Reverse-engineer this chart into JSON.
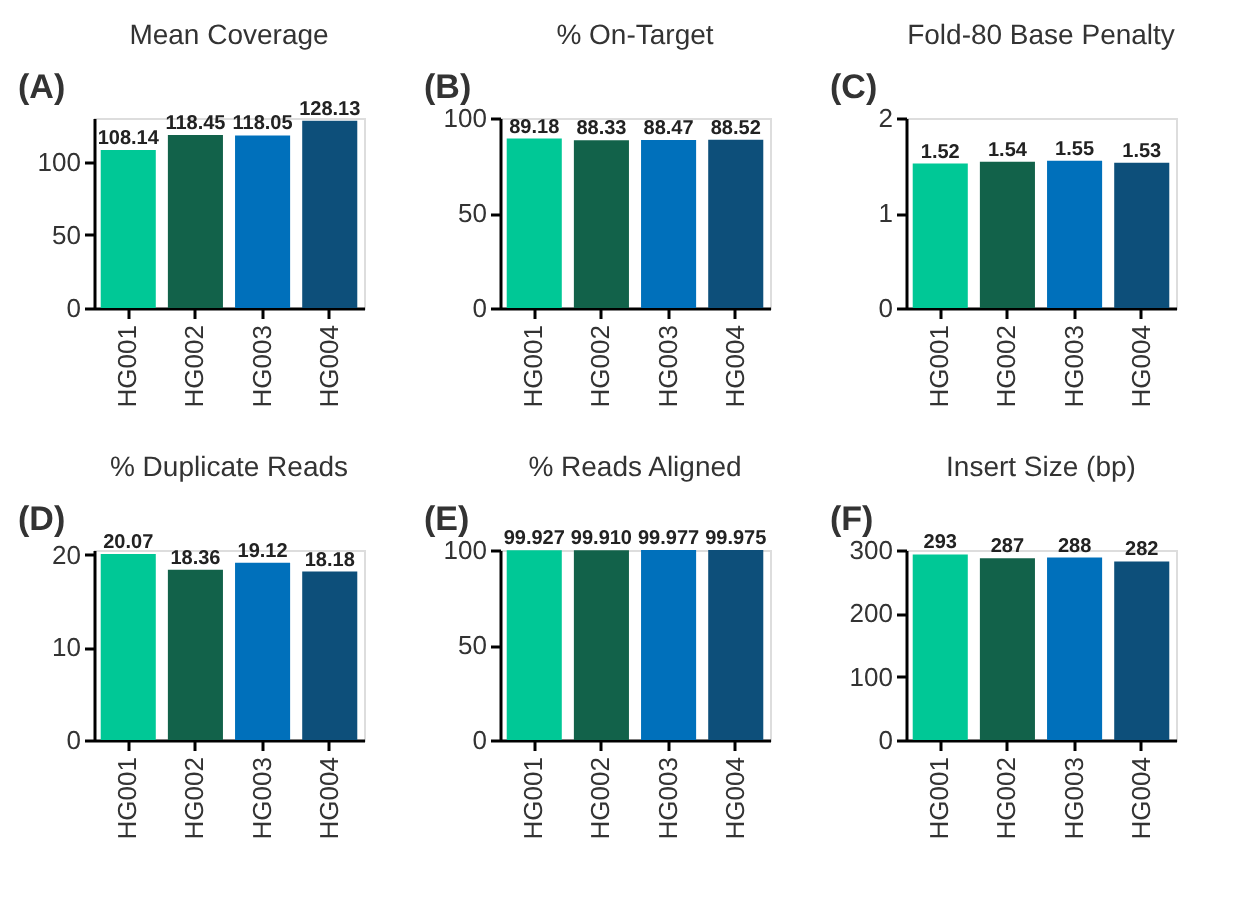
{
  "chart_data": [
    {
      "type": "bar",
      "title": "Mean Coverage",
      "annotations": [
        "(A)"
      ],
      "categories": [
        "HG001",
        "HG002",
        "HG003",
        "HG004"
      ],
      "values": [
        108.14,
        118.45,
        118.05,
        128.13
      ],
      "colors": [
        "#00c896",
        "#12624a",
        "#0070bb",
        "#0d4f7a"
      ],
      "ylim": [
        0,
        130
      ],
      "yticks": [
        0,
        50,
        100
      ],
      "data_labels": true,
      "grid": false
    },
    {
      "type": "bar",
      "title": "% On-Target",
      "annotations": [
        "(B)"
      ],
      "categories": [
        "HG001",
        "HG002",
        "HG003",
        "HG004"
      ],
      "values": [
        89.18,
        88.33,
        88.47,
        88.52
      ],
      "colors": [
        "#00c896",
        "#12624a",
        "#0070bb",
        "#0d4f7a"
      ],
      "ylim": [
        0,
        100
      ],
      "yticks": [
        0,
        50,
        100
      ],
      "data_labels": true,
      "grid": false
    },
    {
      "type": "bar",
      "title": "Fold-80 Base Penalty",
      "annotations": [
        "(C)"
      ],
      "categories": [
        "HG001",
        "HG002",
        "HG003",
        "HG004"
      ],
      "values": [
        1.52,
        1.54,
        1.55,
        1.53
      ],
      "colors": [
        "#00c896",
        "#12624a",
        "#0070bb",
        "#0d4f7a"
      ],
      "ylim": [
        0,
        2
      ],
      "yticks": [
        0,
        1,
        2
      ],
      "data_labels": true,
      "grid": false
    },
    {
      "type": "bar",
      "title": "% Duplicate Reads",
      "annotations": [
        "(D)"
      ],
      "categories": [
        "HG001",
        "HG002",
        "HG003",
        "HG004"
      ],
      "values": [
        20.07,
        18.36,
        19.12,
        18.18
      ],
      "colors": [
        "#00c896",
        "#12624a",
        "#0070bb",
        "#0d4f7a"
      ],
      "ylim": [
        0,
        20.5
      ],
      "yticks": [
        0,
        10,
        20
      ],
      "data_labels": true,
      "grid": false
    },
    {
      "type": "bar",
      "title": "% Reads Aligned",
      "annotations": [
        "(E)"
      ],
      "categories": [
        "HG001",
        "HG002",
        "HG003",
        "HG004"
      ],
      "values": [
        99.927,
        99.91,
        99.977,
        99.975
      ],
      "value_labels": [
        "99.927",
        "99.910",
        "99.977",
        "99.975"
      ],
      "colors": [
        "#00c896",
        "#12624a",
        "#0070bb",
        "#0d4f7a"
      ],
      "ylim": [
        0,
        100
      ],
      "yticks": [
        0,
        50,
        100
      ],
      "grid": false
    },
    {
      "type": "bar",
      "title": "Insert Size (bp)",
      "annotations": [
        "(F)"
      ],
      "categories": [
        "HG001",
        "HG002",
        "HG003",
        "HG004"
      ],
      "values": [
        293,
        287,
        288,
        282
      ],
      "colors": [
        "#00c896",
        "#12624a",
        "#0070bb",
        "#0d4f7a"
      ],
      "ylim": [
        0,
        300
      ],
      "yticks": [
        0,
        100,
        200,
        300
      ],
      "data_labels": true,
      "grid": false
    }
  ]
}
